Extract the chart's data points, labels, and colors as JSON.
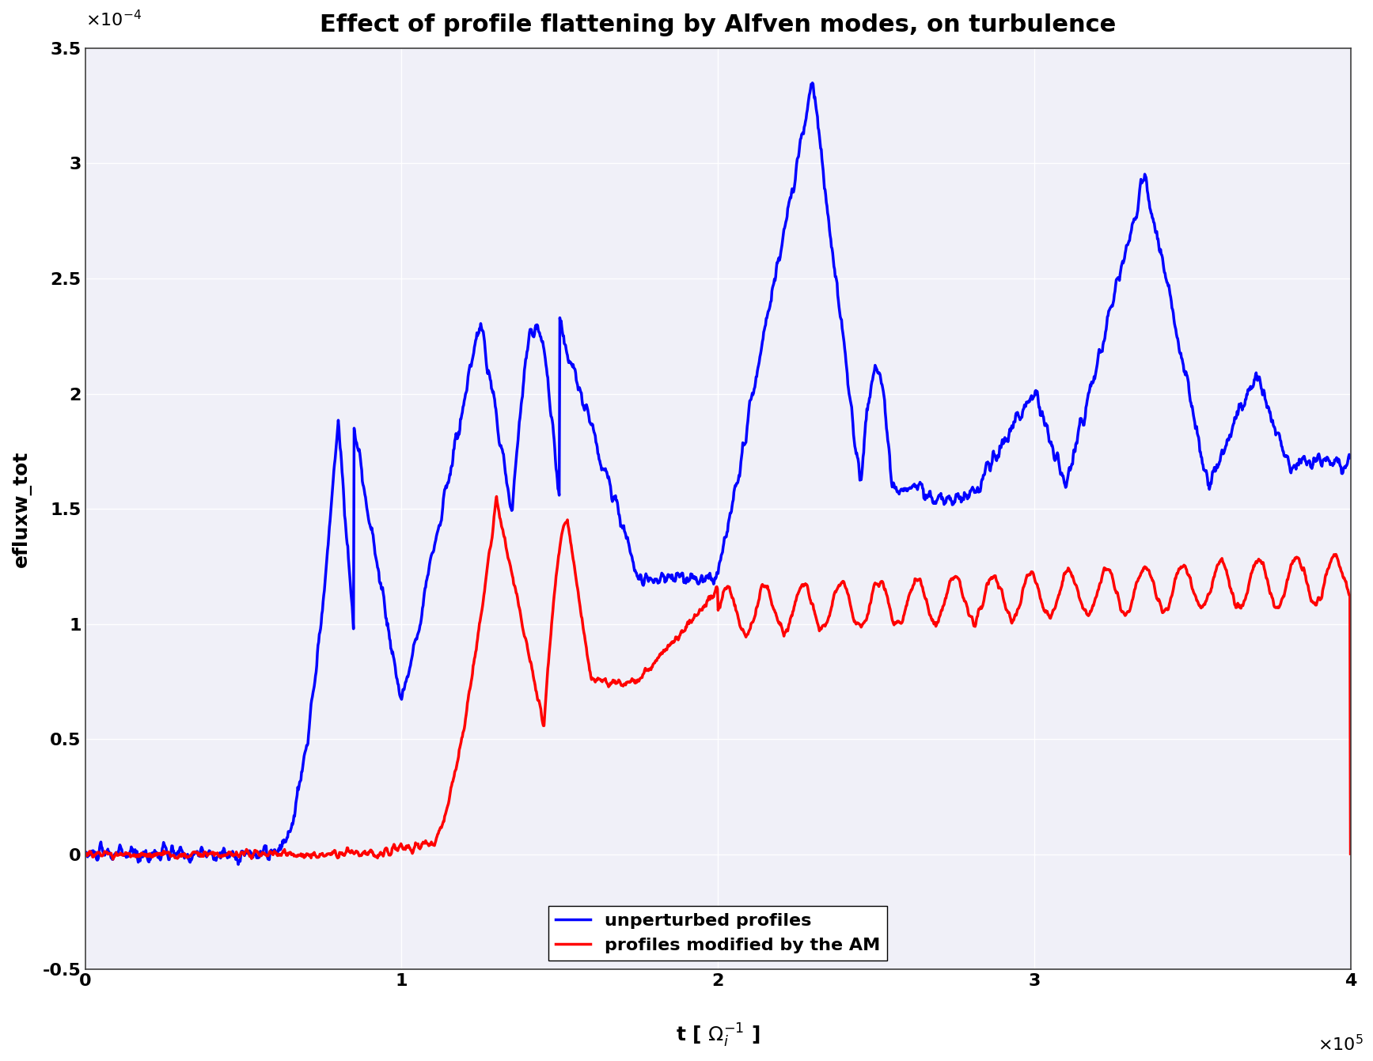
{
  "title": "Effect of profile flattening by Alfven modes, on turbulence",
  "xlabel": "t [ $\\Omega_i^{-1}$ ]",
  "ylabel": "efluxw_tot",
  "xlim": [
    0,
    400000
  ],
  "ylim": [
    -5e-05,
    0.00035
  ],
  "yticks": [
    -5e-05,
    0.0,
    5e-05,
    0.0001,
    0.00015,
    0.0002,
    0.00025,
    0.0003,
    0.00035
  ],
  "ytick_labels": [
    "-0.5",
    "0",
    "0.5",
    "1",
    "1.5",
    "2",
    "2.5",
    "3",
    "3.5"
  ],
  "xticks": [
    0,
    100000,
    200000,
    300000,
    400000
  ],
  "xtick_labels": [
    "0",
    "1",
    "2",
    "3",
    "4"
  ],
  "line_blue_color": "#0000FF",
  "line_red_color": "#FF0000",
  "legend_blue": "unperturbed profiles",
  "legend_red": "profiles modified by the AM",
  "background_color": "#f0f0f8",
  "grid_color": "#ffffff",
  "title_fontsize": 22,
  "axis_label_fontsize": 18,
  "tick_fontsize": 16,
  "legend_fontsize": 16,
  "line_width": 2.5
}
